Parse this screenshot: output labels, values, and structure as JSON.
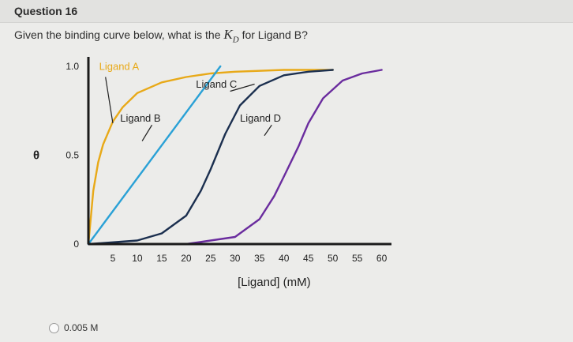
{
  "question": {
    "title": "Question 16",
    "prompt_text": "Given the binding curve below, what is the",
    "prompt_symbol": "K",
    "prompt_symbol_sub": "D",
    "prompt_suffix": "for Ligand B?"
  },
  "answers": [
    {
      "label": "0.005 M",
      "selected": false
    }
  ],
  "chart_data": {
    "type": "line",
    "ylabel": "θ",
    "xlabel": "[Ligand] (mM)",
    "xlim": [
      0,
      62
    ],
    "ylim": [
      0,
      1.0
    ],
    "x_ticks": [
      5,
      10,
      15,
      20,
      25,
      30,
      35,
      40,
      45,
      50,
      55,
      60
    ],
    "y_ticks": [
      {
        "value": 0,
        "label": "0"
      },
      {
        "value": 0.5,
        "label": "0.5"
      },
      {
        "value": 1.0,
        "label": "1.0"
      }
    ],
    "series": [
      {
        "name": "Ligand A",
        "color": "#e8a918",
        "x": [
          0,
          1,
          2,
          3,
          5,
          7,
          10,
          15,
          20,
          25,
          30,
          40,
          50
        ],
        "y": [
          0,
          0.3,
          0.46,
          0.56,
          0.69,
          0.77,
          0.85,
          0.91,
          0.94,
          0.96,
          0.97,
          0.98,
          0.98
        ]
      },
      {
        "name": "Ligand B",
        "color": "#2aa1d6",
        "x": [
          0,
          27
        ],
        "y": [
          0,
          1.0
        ]
      },
      {
        "name": "Ligand C",
        "color": "#1b2f4f",
        "x": [
          0,
          10,
          15,
          20,
          23,
          25,
          28,
          31,
          35,
          40,
          45,
          50
        ],
        "y": [
          0,
          0.02,
          0.06,
          0.16,
          0.3,
          0.42,
          0.62,
          0.78,
          0.89,
          0.95,
          0.97,
          0.98
        ]
      },
      {
        "name": "Ligand D",
        "color": "#6a2c9e",
        "x": [
          20,
          30,
          35,
          38,
          40,
          43,
          45,
          48,
          52,
          56,
          60
        ],
        "y": [
          0,
          0.04,
          0.14,
          0.27,
          0.38,
          0.55,
          0.68,
          0.82,
          0.92,
          0.96,
          0.98
        ]
      }
    ]
  }
}
